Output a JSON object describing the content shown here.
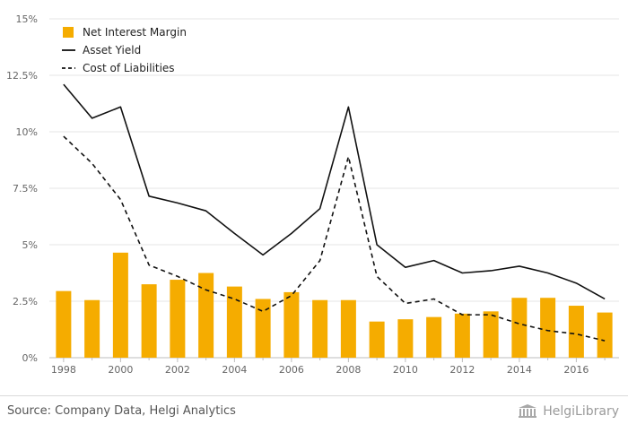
{
  "chart_data": {
    "type": "bar",
    "x": [
      1998,
      1999,
      2000,
      2001,
      2002,
      2003,
      2004,
      2005,
      2006,
      2007,
      2008,
      2009,
      2010,
      2011,
      2012,
      2013,
      2014,
      2015,
      2016,
      2017
    ],
    "x_tick_labels": [
      "1998",
      "2000",
      "2002",
      "2004",
      "2006",
      "2008",
      "2010",
      "2012",
      "2014",
      "2016"
    ],
    "series": [
      {
        "name": "Net Interest Margin",
        "kind": "bar",
        "color": "#f5ac00",
        "values": [
          2.95,
          2.55,
          4.65,
          3.25,
          3.45,
          3.75,
          3.15,
          2.6,
          2.9,
          2.55,
          2.55,
          1.6,
          1.7,
          1.8,
          1.95,
          2.05,
          2.65,
          2.65,
          2.3,
          2.0
        ]
      },
      {
        "name": "Asset Yield",
        "kind": "line",
        "style": "solid",
        "color": "#111111",
        "values": [
          12.1,
          10.6,
          11.1,
          7.15,
          6.85,
          6.5,
          5.5,
          4.55,
          5.5,
          6.6,
          11.1,
          5.0,
          4.0,
          4.3,
          3.75,
          3.85,
          4.05,
          3.75,
          3.3,
          2.6
        ]
      },
      {
        "name": "Cost of Liabilities",
        "kind": "line",
        "style": "dashed",
        "color": "#111111",
        "values": [
          9.8,
          8.6,
          7.0,
          4.1,
          3.6,
          3.0,
          2.6,
          2.05,
          2.75,
          4.3,
          8.9,
          3.6,
          2.4,
          2.6,
          1.9,
          1.9,
          1.5,
          1.2,
          1.05,
          0.75
        ]
      }
    ],
    "y_ticks": [
      0,
      2.5,
      5,
      7.5,
      10,
      12.5,
      15
    ],
    "y_tick_labels": [
      "0%",
      "2.5%",
      "5%",
      "7.5%",
      "10%",
      "12.5%",
      "15%"
    ],
    "ylim": [
      0,
      15
    ],
    "grid": "horizontal",
    "legend_position": "top-left",
    "title": "",
    "xlabel": "",
    "ylabel": ""
  },
  "footer": {
    "source": "Source: Company Data, Helgi Analytics",
    "brand": "HelgiLibrary"
  }
}
